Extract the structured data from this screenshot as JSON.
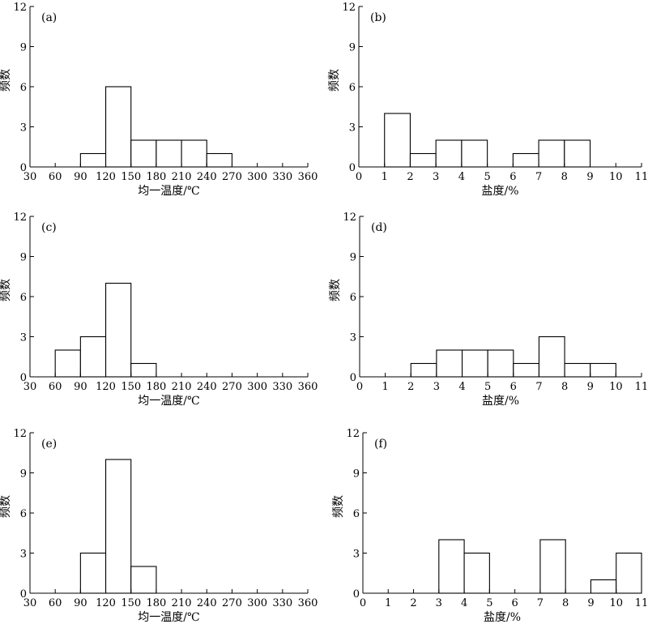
{
  "chart_data": [
    {
      "type": "bar",
      "panel": "(a)",
      "xlabel": "均一温度/℃",
      "ylabel": "频数",
      "xlim": [
        30,
        360
      ],
      "ylim": [
        0,
        12
      ],
      "xticks": [
        30,
        60,
        90,
        120,
        150,
        180,
        210,
        240,
        270,
        300,
        330,
        360
      ],
      "yticks": [
        0,
        3,
        6,
        9,
        12
      ],
      "bins": [
        {
          "from": 90,
          "to": 120,
          "value": 1
        },
        {
          "from": 120,
          "to": 150,
          "value": 6
        },
        {
          "from": 150,
          "to": 180,
          "value": 2
        },
        {
          "from": 180,
          "to": 210,
          "value": 2
        },
        {
          "from": 210,
          "to": 240,
          "value": 2
        },
        {
          "from": 240,
          "to": 270,
          "value": 1
        }
      ]
    },
    {
      "type": "bar",
      "panel": "(b)",
      "xlabel": "盐度/%",
      "ylabel": "频数",
      "xlim": [
        0,
        11
      ],
      "ylim": [
        0,
        12
      ],
      "xticks": [
        0,
        1,
        2,
        3,
        4,
        5,
        6,
        7,
        8,
        9,
        10,
        11
      ],
      "yticks": [
        0,
        3,
        6,
        9,
        12
      ],
      "bins": [
        {
          "from": 1,
          "to": 2,
          "value": 4
        },
        {
          "from": 2,
          "to": 3,
          "value": 1
        },
        {
          "from": 3,
          "to": 4,
          "value": 2
        },
        {
          "from": 4,
          "to": 5,
          "value": 2
        },
        {
          "from": 6,
          "to": 7,
          "value": 1
        },
        {
          "from": 7,
          "to": 8,
          "value": 2
        },
        {
          "from": 8,
          "to": 9,
          "value": 2
        }
      ]
    },
    {
      "type": "bar",
      "panel": "(c)",
      "xlabel": "均一温度/℃",
      "ylabel": "频数",
      "xlim": [
        30,
        360
      ],
      "ylim": [
        0,
        12
      ],
      "xticks": [
        30,
        60,
        90,
        120,
        150,
        180,
        210,
        240,
        270,
        300,
        330,
        360
      ],
      "yticks": [
        0,
        3,
        6,
        9,
        12
      ],
      "bins": [
        {
          "from": 60,
          "to": 90,
          "value": 2
        },
        {
          "from": 90,
          "to": 120,
          "value": 3
        },
        {
          "from": 120,
          "to": 150,
          "value": 7
        },
        {
          "from": 150,
          "to": 180,
          "value": 1
        }
      ]
    },
    {
      "type": "bar",
      "panel": "(d)",
      "xlabel": "盐度/%",
      "ylabel": "频数",
      "xlim": [
        0,
        11
      ],
      "ylim": [
        0,
        12
      ],
      "xticks": [
        0,
        1,
        2,
        3,
        4,
        5,
        6,
        7,
        8,
        9,
        10,
        11
      ],
      "yticks": [
        0,
        3,
        6,
        9,
        12
      ],
      "bins": [
        {
          "from": 2,
          "to": 3,
          "value": 1
        },
        {
          "from": 3,
          "to": 4,
          "value": 2
        },
        {
          "from": 4,
          "to": 5,
          "value": 2
        },
        {
          "from": 5,
          "to": 6,
          "value": 2
        },
        {
          "from": 6,
          "to": 7,
          "value": 1
        },
        {
          "from": 7,
          "to": 8,
          "value": 3
        },
        {
          "from": 8,
          "to": 9,
          "value": 1
        },
        {
          "from": 9,
          "to": 10,
          "value": 1
        }
      ]
    },
    {
      "type": "bar",
      "panel": "(e)",
      "xlabel": "均一温度/℃",
      "ylabel": "频数",
      "xlim": [
        30,
        360
      ],
      "ylim": [
        0,
        12
      ],
      "xticks": [
        30,
        60,
        90,
        120,
        150,
        180,
        210,
        240,
        270,
        300,
        330,
        360
      ],
      "yticks": [
        0,
        3,
        6,
        9,
        12
      ],
      "bins": [
        {
          "from": 90,
          "to": 120,
          "value": 3
        },
        {
          "from": 120,
          "to": 150,
          "value": 10
        },
        {
          "from": 150,
          "to": 180,
          "value": 2
        }
      ]
    },
    {
      "type": "bar",
      "panel": "(f)",
      "xlabel": "盐度/%",
      "ylabel": "频数",
      "xlim": [
        0,
        11
      ],
      "ylim": [
        0,
        12
      ],
      "xticks": [
        0,
        1,
        2,
        3,
        4,
        5,
        6,
        7,
        8,
        9,
        10,
        11
      ],
      "yticks": [
        0,
        3,
        6,
        9,
        12
      ],
      "bins": [
        {
          "from": 3,
          "to": 4,
          "value": 4
        },
        {
          "from": 4,
          "to": 5,
          "value": 3
        },
        {
          "from": 7,
          "to": 8,
          "value": 4
        },
        {
          "from": 9,
          "to": 10,
          "value": 1
        },
        {
          "from": 10,
          "to": 11,
          "value": 3
        }
      ]
    }
  ]
}
